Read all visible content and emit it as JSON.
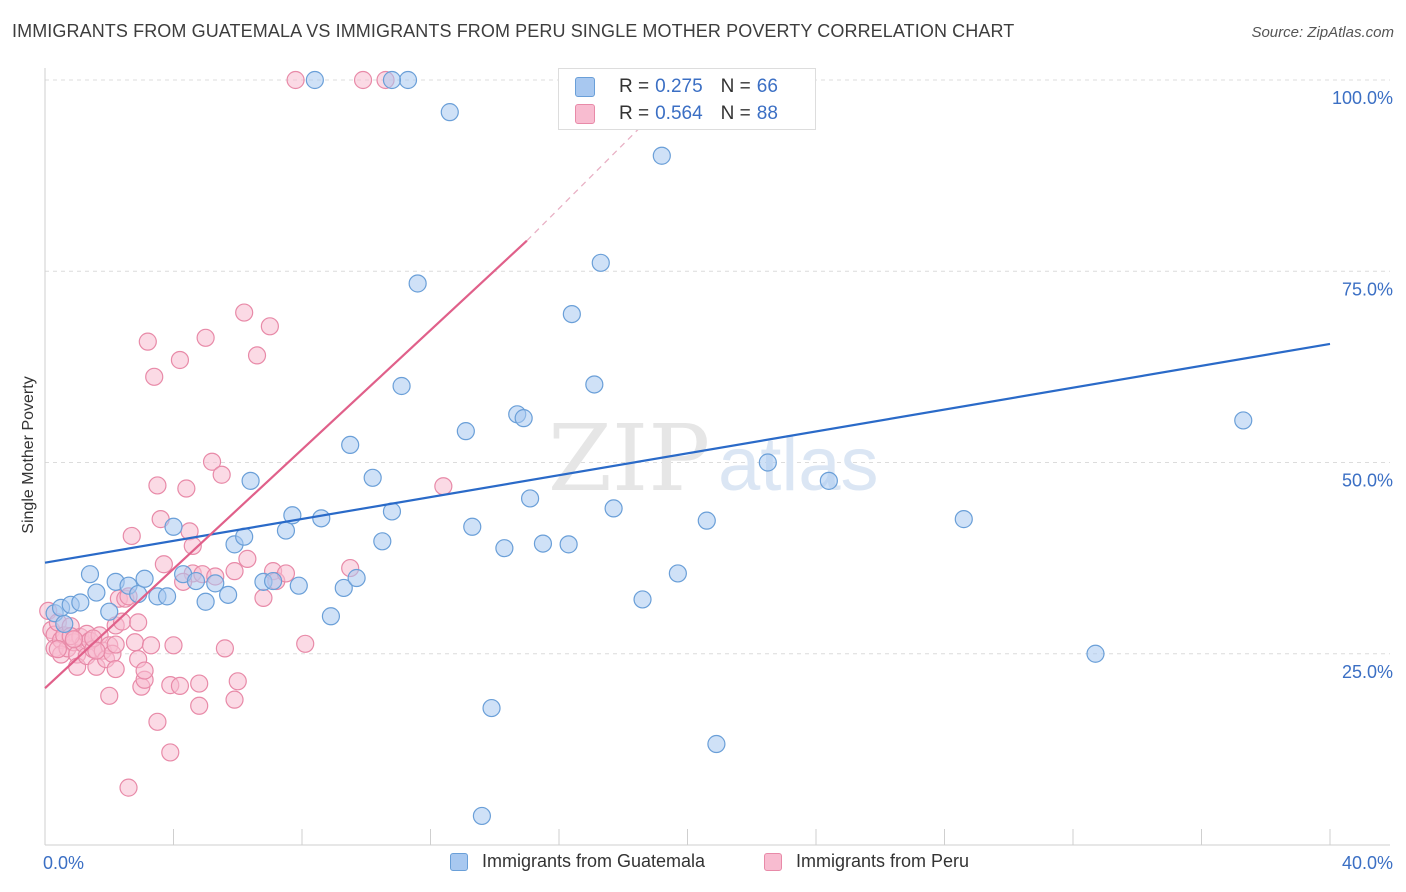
{
  "title": "IMMIGRANTS FROM GUATEMALA VS IMMIGRANTS FROM PERU SINGLE MOTHER POVERTY CORRELATION CHART",
  "source": "Source: ZipAtlas.com",
  "watermark": {
    "zip": "ZIP",
    "atlas": "atlas"
  },
  "legend_top": {
    "rows": [
      {
        "r_label": "R = ",
        "r_value": "0.275",
        "n_label": "N = ",
        "n_value": "66"
      },
      {
        "r_label": "R = ",
        "r_value": "0.564",
        "n_label": "N = ",
        "n_value": "88"
      }
    ]
  },
  "legend_bottom": {
    "items": [
      {
        "label": "Immigrants from Guatemala"
      },
      {
        "label": "Immigrants from Peru"
      }
    ]
  },
  "colors": {
    "blue_fill": "#a8c8f0",
    "blue_stroke": "#6a9fd8",
    "blue_line": "#2a6ac8",
    "pink_fill": "#f8bcd0",
    "pink_stroke": "#e88aa8",
    "pink_line": "#e0608a",
    "axis_text": "#3b6fc4"
  },
  "chart_data": {
    "type": "scatter",
    "title": "IMMIGRANTS FROM GUATEMALA VS IMMIGRANTS FROM PERU SINGLE MOTHER POVERTY CORRELATION CHART",
    "xlabel": "",
    "ylabel": "Single Mother Poverty",
    "xlim": [
      0,
      40
    ],
    "ylim": [
      0,
      100
    ],
    "x_tick_labels": [
      "0.0%",
      "40.0%"
    ],
    "y_tick_values": [
      25,
      50,
      75,
      100
    ],
    "y_tick_labels": [
      "25.0%",
      "50.0%",
      "75.0%",
      "100.0%"
    ],
    "grid": true,
    "series": [
      {
        "name": "Immigrants from Guatemala",
        "r": 0.275,
        "n": 66,
        "trend": {
          "x": [
            0,
            40
          ],
          "y": [
            36.9,
            65.5
          ],
          "dashed_to": null
        },
        "points": [
          [
            0.3,
            30.3
          ],
          [
            0.5,
            31.0
          ],
          [
            0.6,
            28.9
          ],
          [
            0.8,
            31.4
          ],
          [
            1.1,
            31.7
          ],
          [
            1.4,
            35.4
          ],
          [
            1.6,
            33.0
          ],
          [
            2.0,
            30.5
          ],
          [
            2.2,
            34.4
          ],
          [
            2.6,
            33.9
          ],
          [
            2.9,
            32.8
          ],
          [
            3.1,
            34.8
          ],
          [
            3.5,
            32.5
          ],
          [
            3.8,
            32.5
          ],
          [
            4.0,
            41.6
          ],
          [
            4.3,
            35.4
          ],
          [
            4.7,
            34.5
          ],
          [
            5.0,
            31.8
          ],
          [
            5.3,
            34.2
          ],
          [
            5.7,
            32.7
          ],
          [
            5.9,
            39.3
          ],
          [
            6.2,
            40.3
          ],
          [
            6.4,
            47.6
          ],
          [
            6.8,
            34.4
          ],
          [
            7.1,
            34.5
          ],
          [
            7.5,
            41.1
          ],
          [
            7.7,
            43.1
          ],
          [
            7.9,
            33.9
          ],
          [
            8.6,
            42.7
          ],
          [
            8.9,
            29.9
          ],
          [
            9.3,
            33.6
          ],
          [
            9.5,
            52.3
          ],
          [
            9.7,
            34.9
          ],
          [
            10.2,
            48.0
          ],
          [
            10.5,
            39.7
          ],
          [
            10.8,
            43.6
          ],
          [
            11.1,
            60.0
          ],
          [
            11.3,
            100.0
          ],
          [
            11.6,
            73.4
          ],
          [
            12.6,
            95.8
          ],
          [
            13.1,
            54.1
          ],
          [
            13.3,
            41.6
          ],
          [
            13.6,
            3.8
          ],
          [
            13.9,
            17.9
          ],
          [
            14.3,
            38.8
          ],
          [
            14.7,
            56.3
          ],
          [
            14.9,
            55.8
          ],
          [
            15.1,
            45.3
          ],
          [
            15.5,
            39.4
          ],
          [
            16.3,
            39.3
          ],
          [
            16.4,
            69.4
          ],
          [
            17.1,
            60.2
          ],
          [
            17.3,
            76.1
          ],
          [
            17.7,
            44.0
          ],
          [
            18.6,
            32.1
          ],
          [
            19.2,
            90.1
          ],
          [
            19.7,
            35.5
          ],
          [
            20.6,
            42.4
          ],
          [
            20.9,
            13.2
          ],
          [
            22.5,
            50.0
          ],
          [
            24.4,
            47.6
          ],
          [
            28.6,
            42.6
          ],
          [
            32.7,
            25.0
          ],
          [
            37.3,
            55.5
          ],
          [
            8.4,
            100.0
          ],
          [
            10.8,
            100.0
          ]
        ]
      },
      {
        "name": "Immigrants from Peru",
        "r": 0.564,
        "n": 88,
        "trend": {
          "x": [
            0,
            15.0
          ],
          "y": [
            20.5,
            79.0
          ],
          "dashed_to": [
            20,
            100
          ]
        },
        "points": [
          [
            0.1,
            30.6
          ],
          [
            0.2,
            28.1
          ],
          [
            0.3,
            27.5
          ],
          [
            0.3,
            25.7
          ],
          [
            0.4,
            29.1
          ],
          [
            0.5,
            26.8
          ],
          [
            0.5,
            24.9
          ],
          [
            0.6,
            27.4
          ],
          [
            0.7,
            25.7
          ],
          [
            0.8,
            28.6
          ],
          [
            0.9,
            26.5
          ],
          [
            1.0,
            24.9
          ],
          [
            1.0,
            23.3
          ],
          [
            1.1,
            27.2
          ],
          [
            1.2,
            26.3
          ],
          [
            1.3,
            27.6
          ],
          [
            1.3,
            24.7
          ],
          [
            1.4,
            26.7
          ],
          [
            1.5,
            25.6
          ],
          [
            1.6,
            23.3
          ],
          [
            1.7,
            27.4
          ],
          [
            1.8,
            25.4
          ],
          [
            1.9,
            24.3
          ],
          [
            2.0,
            19.5
          ],
          [
            2.0,
            26.1
          ],
          [
            2.1,
            25.0
          ],
          [
            2.2,
            23.0
          ],
          [
            2.2,
            28.7
          ],
          [
            2.3,
            32.2
          ],
          [
            2.4,
            29.2
          ],
          [
            2.5,
            32.2
          ],
          [
            2.6,
            7.5
          ],
          [
            2.7,
            40.4
          ],
          [
            2.8,
            26.5
          ],
          [
            2.9,
            24.3
          ],
          [
            2.9,
            29.1
          ],
          [
            3.0,
            20.7
          ],
          [
            3.1,
            21.6
          ],
          [
            3.2,
            65.8
          ],
          [
            3.3,
            26.1
          ],
          [
            3.4,
            61.2
          ],
          [
            3.5,
            16.1
          ],
          [
            3.5,
            47.0
          ],
          [
            3.6,
            42.6
          ],
          [
            3.9,
            20.9
          ],
          [
            3.9,
            12.1
          ],
          [
            4.0,
            26.1
          ],
          [
            4.2,
            20.8
          ],
          [
            4.4,
            46.6
          ],
          [
            4.5,
            41.0
          ],
          [
            4.6,
            35.5
          ],
          [
            4.6,
            39.1
          ],
          [
            4.8,
            21.1
          ],
          [
            4.8,
            18.2
          ],
          [
            4.9,
            35.4
          ],
          [
            5.2,
            50.1
          ],
          [
            5.3,
            35.1
          ],
          [
            5.5,
            48.4
          ],
          [
            5.6,
            25.7
          ],
          [
            5.9,
            19.0
          ],
          [
            5.9,
            35.8
          ],
          [
            6.0,
            21.4
          ],
          [
            6.2,
            69.6
          ],
          [
            6.3,
            37.4
          ],
          [
            6.6,
            64.0
          ],
          [
            6.8,
            32.3
          ],
          [
            7.0,
            67.8
          ],
          [
            7.1,
            35.8
          ],
          [
            7.2,
            34.5
          ],
          [
            7.5,
            35.5
          ],
          [
            7.8,
            100.0
          ],
          [
            8.1,
            26.3
          ],
          [
            9.5,
            36.2
          ],
          [
            9.9,
            100.0
          ],
          [
            10.6,
            100.0
          ],
          [
            12.4,
            46.9
          ],
          [
            5.0,
            66.3
          ],
          [
            4.2,
            63.4
          ],
          [
            3.7,
            36.7
          ],
          [
            2.6,
            32.5
          ],
          [
            1.5,
            27.0
          ],
          [
            0.8,
            27.3
          ],
          [
            0.4,
            25.6
          ],
          [
            3.1,
            22.8
          ],
          [
            2.2,
            26.2
          ],
          [
            1.6,
            25.4
          ],
          [
            0.9,
            26.9
          ],
          [
            4.3,
            34.4
          ]
        ]
      }
    ]
  }
}
